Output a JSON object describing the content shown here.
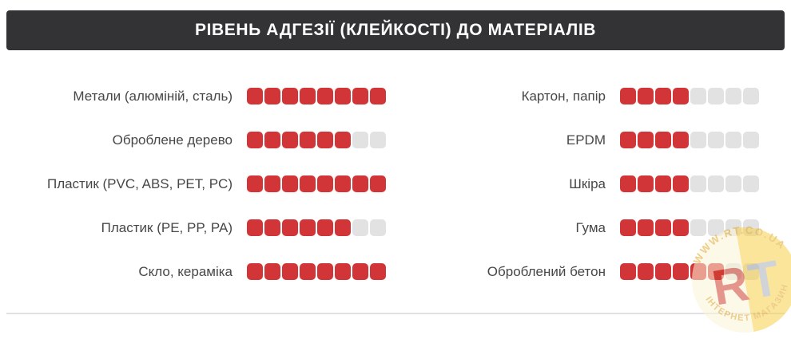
{
  "title": "РІВЕНЬ АДГЕЗІЇ (КЛЕЙКОСТІ) ДО МАТЕРІАЛІВ",
  "colors": {
    "title_bar": "#333335",
    "filled": "#d23537",
    "empty": "#e2e2e2",
    "label_text": "#474747",
    "divider": "#e1e1e1",
    "watermark_yellow": "#f6d14b",
    "watermark_pale": "#fdf5d8",
    "watermark_text": "#e0a62c",
    "watermark_r": "#cf4131",
    "watermark_t": "#aab0b8"
  },
  "chart_data": {
    "type": "bar",
    "subtype": "rating-squares",
    "title": "РІВЕНЬ АДГЕЗІЇ (КЛЕЙКОСТІ) ДО МАТЕРІАЛІВ",
    "max": 8,
    "legend_position": "none",
    "grid": false,
    "series": [
      {
        "name": "left-column",
        "categories": [
          "Метали (алюміній, сталь)",
          "Оброблене дерево",
          "Пластик (PVC, ABS, PET, PC)",
          "Пластик (PE, PP, PA)",
          "Скло, кераміка"
        ],
        "values": [
          8,
          6,
          8,
          6,
          8
        ]
      },
      {
        "name": "right-column",
        "categories": [
          "Картон, папір",
          "EPDM",
          "Шкіра",
          "Гума",
          "Оброблений бетон"
        ],
        "values": [
          4,
          4,
          4,
          4,
          6
        ]
      }
    ]
  },
  "watermark": {
    "top_text": "WWW.RT.CO.UA",
    "bottom_text": "ІНТЕРНЕТ МАГАЗИН",
    "letter_r": "R",
    "letter_t": "T"
  }
}
